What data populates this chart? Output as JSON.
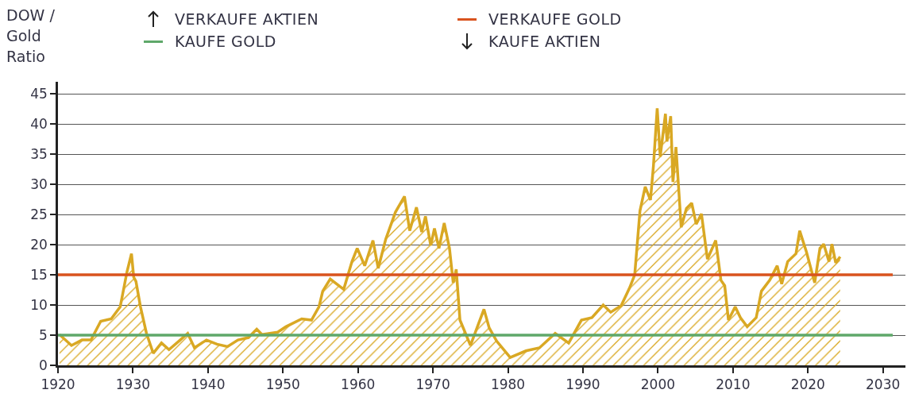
{
  "chart_data": {
    "type": "area",
    "ylabel": "DOW / Gold Ratio",
    "annotations": [
      "VERKAUFE AKTIEN",
      "KAUFE AKTIEN"
    ],
    "series": [
      {
        "color": "#d9a823",
        "x": [
          1920.2,
          1921.8,
          1923.2,
          1924.4,
          1925.7,
          1927.1,
          1928.3,
          1929.2,
          1929.8,
          1930.1,
          1930.4,
          1931.0,
          1931.8,
          1932.7,
          1933.8,
          1934.8,
          1936.3,
          1937.3,
          1938.2,
          1939.8,
          1941.2,
          1942.6,
          1944.0,
          1945.4,
          1946.5,
          1947.2,
          1949.3,
          1950.4,
          1952.5,
          1953.8,
          1954.8,
          1955.3,
          1956.3,
          1958.1,
          1959.2,
          1959.9,
          1960.9,
          1962.0,
          1962.7,
          1963.7,
          1965.0,
          1966.2,
          1966.9,
          1967.8,
          1968.5,
          1969.0,
          1969.7,
          1970.2,
          1970.8,
          1971.5,
          1972.2,
          1972.7,
          1973.1,
          1973.6,
          1975.0,
          1976.8,
          1977.5,
          1978.5,
          1980.3,
          1982.4,
          1984.2,
          1986.3,
          1988.1,
          1989.8,
          1991.2,
          1992.7,
          1993.7,
          1995.1,
          1996.2,
          1996.9,
          1997.6,
          1998.3,
          1999.0,
          1999.4,
          1999.9,
          2000.3,
          2001.0,
          2001.2,
          2001.7,
          2002.0,
          2002.4,
          2003.1,
          2003.8,
          2004.5,
          2005.1,
          2005.8,
          2006.6,
          2007.7,
          2008.4,
          2008.9,
          2009.4,
          2010.3,
          2011.0,
          2011.9,
          2013.1,
          2013.8,
          2014.9,
          2015.9,
          2016.5,
          2017.3,
          2018.4,
          2018.9,
          2019.8,
          2020.9,
          2021.6,
          2022.1,
          2022.8,
          2023.2,
          2023.7,
          2024.3
        ],
        "values": [
          5.1,
          3.3,
          4.2,
          4.2,
          7.3,
          7.7,
          9.7,
          15.5,
          18.5,
          14.6,
          13.9,
          9.7,
          5.3,
          2.0,
          3.7,
          2.6,
          4.2,
          5.3,
          2.9,
          4.2,
          3.5,
          3.1,
          4.2,
          4.6,
          6.0,
          5.1,
          5.5,
          6.4,
          7.7,
          7.5,
          9.7,
          12.3,
          14.3,
          12.6,
          17.2,
          19.4,
          16.5,
          20.7,
          16.1,
          20.9,
          25.4,
          28.0,
          22.3,
          26.2,
          22.1,
          24.7,
          19.9,
          22.7,
          19.4,
          23.6,
          19.4,
          13.7,
          15.9,
          7.5,
          3.3,
          9.3,
          6.2,
          4.0,
          1.3,
          2.4,
          2.9,
          5.3,
          3.7,
          7.5,
          7.9,
          10.0,
          8.8,
          9.9,
          12.8,
          15.0,
          25.6,
          29.6,
          27.4,
          33.1,
          42.6,
          34.6,
          41.7,
          37.1,
          41.3,
          30.4,
          36.2,
          22.9,
          26.0,
          26.9,
          23.4,
          25.1,
          17.6,
          20.7,
          14.1,
          13.2,
          7.5,
          9.7,
          7.9,
          6.4,
          7.9,
          12.3,
          14.1,
          16.5,
          13.5,
          17.2,
          18.5,
          22.3,
          18.8,
          13.7,
          19.4,
          20.1,
          17.2,
          20.1,
          17.0,
          18.0
        ]
      }
    ],
    "xlim": [
      1920,
      2033
    ],
    "xticks": [
      1920,
      1930,
      1940,
      1950,
      1960,
      1970,
      1980,
      1990,
      2000,
      2010,
      2020,
      2030
    ],
    "ylim": [
      0,
      47
    ],
    "yticks": [
      0,
      5,
      10,
      15,
      20,
      25,
      30,
      35,
      40,
      45
    ],
    "grid": "y",
    "legend": "top",
    "ref_lines": [
      {
        "axis": "y",
        "value": 15,
        "label": "VERKAUFE GOLD",
        "color": "#d9531e"
      },
      {
        "axis": "y",
        "value": 5,
        "label": "KAUFE GOLD",
        "color": "#5fa86a"
      }
    ]
  }
}
